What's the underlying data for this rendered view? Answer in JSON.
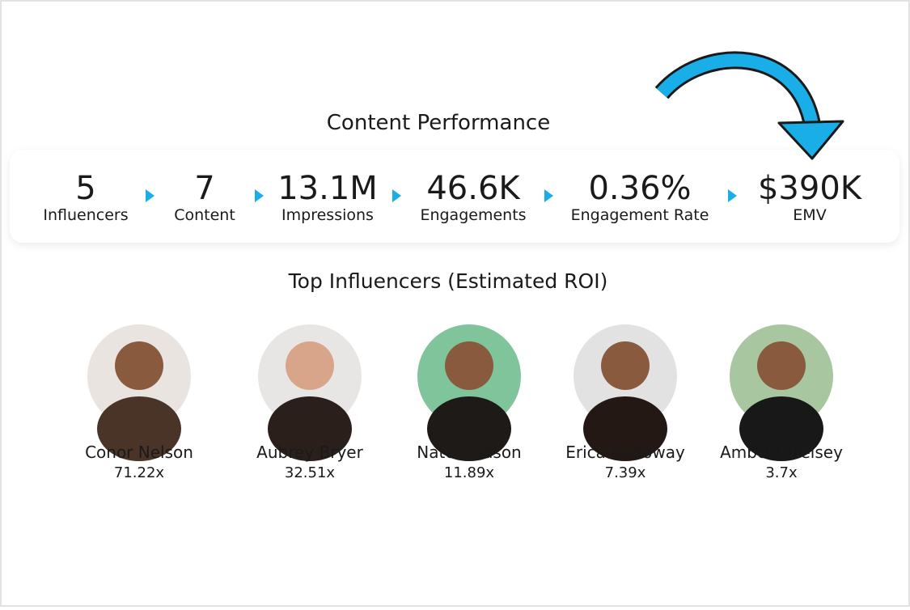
{
  "header": {
    "title": "Content Performance"
  },
  "metrics": [
    {
      "value": "5",
      "label": "Influencers"
    },
    {
      "value": "7",
      "label": "Content"
    },
    {
      "value": "13.1M",
      "label": "Impressions"
    },
    {
      "value": "46.6K",
      "label": "Engagements"
    },
    {
      "value": "0.36%",
      "label": "Engagement Rate"
    },
    {
      "value": "$390K",
      "label": "EMV"
    }
  ],
  "influencers_section": {
    "title": "Top Influencers (Estimated ROI)"
  },
  "influencers": [
    {
      "name": "Conor Nelson",
      "roi": "71.22x"
    },
    {
      "name": "Aubrey Bryer",
      "roi": "32.51x"
    },
    {
      "name": "Nate Hudson",
      "roi": "11.89x"
    },
    {
      "name": "Erica Galloway",
      "roi": "7.39x"
    },
    {
      "name": "Amber Chelsey",
      "roi": "3.7x"
    }
  ]
}
